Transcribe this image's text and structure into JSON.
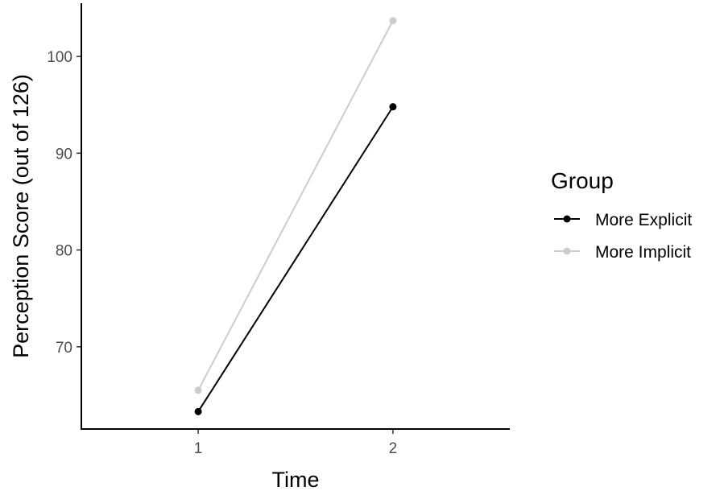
{
  "chart_data": {
    "type": "line",
    "x": [
      1,
      2
    ],
    "xlabel": "Time",
    "ylabel": "Perception Score  (out of 126)",
    "xlim": [
      0.4,
      2.6
    ],
    "ylim": [
      61.5,
      105.5
    ],
    "xticks": [
      1,
      2
    ],
    "yticks": [
      70,
      80,
      90,
      100
    ],
    "grid": false,
    "legend": {
      "title": "Group",
      "position": "right"
    },
    "series": [
      {
        "name": "More Explicit",
        "values": [
          63.3,
          94.8
        ],
        "color": "#000000"
      },
      {
        "name": "More Implicit",
        "values": [
          65.5,
          103.7
        ],
        "color": "#cccccc"
      }
    ]
  }
}
